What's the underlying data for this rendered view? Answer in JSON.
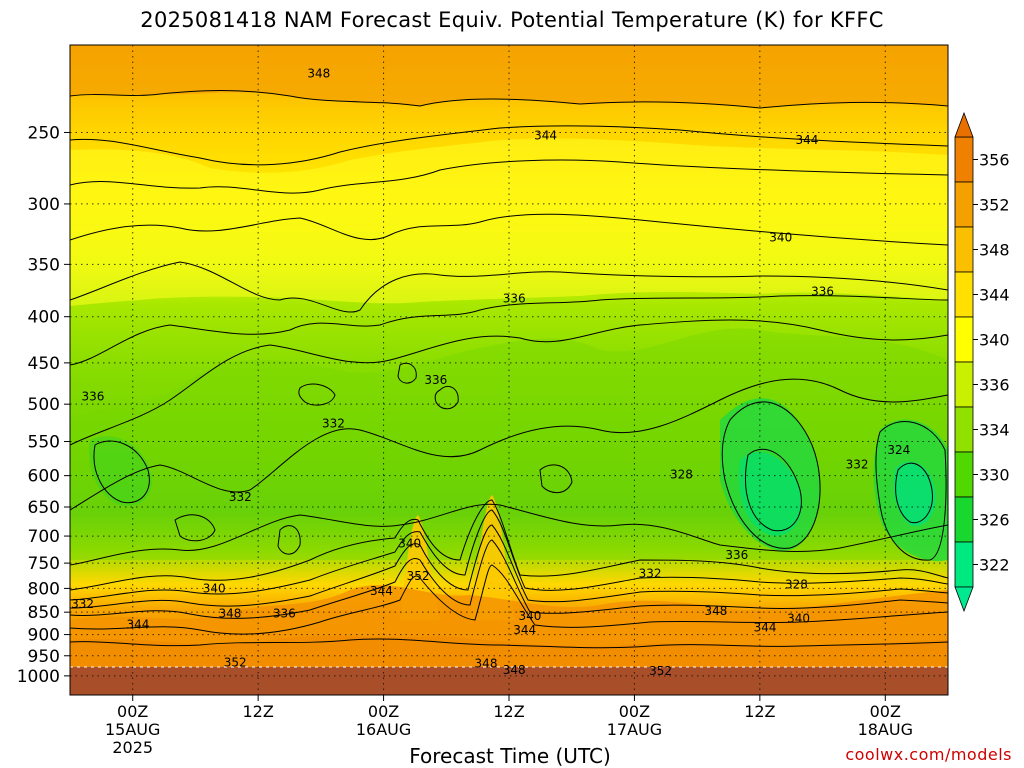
{
  "page": {
    "title": "2025081418 NAM Forecast Equiv. Potential Temperature (K) for KFFC",
    "xlabel": "Forecast Time (UTC)",
    "credit": "coolwx.com/models"
  },
  "chart_data": {
    "type": "heatmap",
    "title": "2025081418 NAM Forecast Equiv. Potential Temperature (K) for KFFC",
    "xlabel": "Forecast Time (UTC)",
    "ylabel": "",
    "x_ticks": [
      {
        "hour": 6,
        "lines": [
          "00Z",
          "15AUG",
          "2025"
        ]
      },
      {
        "hour": 18,
        "lines": [
          "12Z"
        ]
      },
      {
        "hour": 30,
        "lines": [
          "00Z",
          "16AUG"
        ]
      },
      {
        "hour": 42,
        "lines": [
          "12Z"
        ]
      },
      {
        "hour": 54,
        "lines": [
          "00Z",
          "17AUG"
        ]
      },
      {
        "hour": 66,
        "lines": [
          "12Z"
        ]
      },
      {
        "hour": 78,
        "lines": [
          "00Z",
          "18AUG"
        ]
      }
    ],
    "xlim": [
      0,
      84
    ],
    "y_ticks": [
      "250",
      "300",
      "350",
      "400",
      "450",
      "500",
      "550",
      "600",
      "650",
      "700",
      "750",
      "800",
      "850",
      "900",
      "950",
      "1000"
    ],
    "ylim": [
      200,
      1050
    ],
    "y_scale": "log-pressure",
    "grid": true,
    "colorbar": {
      "labels": [
        "356",
        "352",
        "348",
        "344",
        "340",
        "336",
        "334",
        "330",
        "326",
        "322"
      ],
      "colors": [
        "#f08000",
        "#f4a000",
        "#fac000",
        "#ffe000",
        "#ffff00",
        "#c8f000",
        "#90e000",
        "#50d800",
        "#18d830",
        "#00e880"
      ]
    },
    "contour_labels": [
      {
        "text": "348",
        "hour": 23.8,
        "p": 215
      },
      {
        "text": "344",
        "hour": 45.5,
        "p": 252
      },
      {
        "text": "344",
        "hour": 70.5,
        "p": 255
      },
      {
        "text": "340",
        "hour": 68,
        "p": 327
      },
      {
        "text": "336",
        "hour": 42.5,
        "p": 382
      },
      {
        "text": "336",
        "hour": 72,
        "p": 375
      },
      {
        "text": "336",
        "hour": 35,
        "p": 470
      },
      {
        "text": "336",
        "hour": 2.2,
        "p": 490
      },
      {
        "text": "332",
        "hour": 25.2,
        "p": 525
      },
      {
        "text": "332",
        "hour": 16.3,
        "p": 634
      },
      {
        "text": "328",
        "hour": 58.5,
        "p": 598
      },
      {
        "text": "332",
        "hour": 75.3,
        "p": 583
      },
      {
        "text": "324",
        "hour": 79.3,
        "p": 562
      },
      {
        "text": "340",
        "hour": 32.5,
        "p": 713
      },
      {
        "text": "336",
        "hour": 63.8,
        "p": 735
      },
      {
        "text": "332",
        "hour": 55.5,
        "p": 770
      },
      {
        "text": "352",
        "hour": 33.3,
        "p": 775
      },
      {
        "text": "328",
        "hour": 69.5,
        "p": 792
      },
      {
        "text": "340",
        "hour": 13.8,
        "p": 800
      },
      {
        "text": "344",
        "hour": 29.8,
        "p": 805
      },
      {
        "text": "332",
        "hour": 1.2,
        "p": 832
      },
      {
        "text": "348",
        "hour": 15.3,
        "p": 853
      },
      {
        "text": "336",
        "hour": 20.5,
        "p": 853
      },
      {
        "text": "340",
        "hour": 44,
        "p": 858
      },
      {
        "text": "348",
        "hour": 61.8,
        "p": 847
      },
      {
        "text": "340",
        "hour": 69.7,
        "p": 864
      },
      {
        "text": "344",
        "hour": 6.5,
        "p": 877
      },
      {
        "text": "344",
        "hour": 43.5,
        "p": 890
      },
      {
        "text": "344",
        "hour": 66.5,
        "p": 884
      },
      {
        "text": "352",
        "hour": 15.8,
        "p": 967
      },
      {
        "text": "348",
        "hour": 39.8,
        "p": 969
      },
      {
        "text": "348",
        "hour": 42.5,
        "p": 985
      },
      {
        "text": "352",
        "hour": 56.5,
        "p": 988
      }
    ]
  }
}
